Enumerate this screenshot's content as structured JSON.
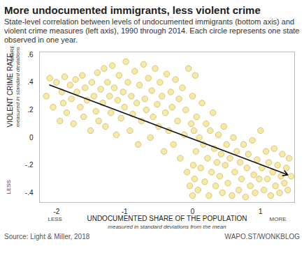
{
  "chart_data": {
    "type": "scatter",
    "title": "More undocumented immigrants, less violent crime",
    "subtitle": "State-level correlation between levels of undocumented immigrants (bottom axis) and violent crime measures (left axis), 1990 through 2014. Each circle represents one state observed in one year.",
    "x_label": "UNDOCUMENTED SHARE OF THE POPULATION",
    "x_label_note": "measured in standard deviations from the mean",
    "x_less": "LESS",
    "x_more": "MORE",
    "y_label": "VIOLENT CRIME RATE",
    "y_label_note": "measured in standard deviations from the mean",
    "y_less": "LESS",
    "y_more": "MORE",
    "source": "Source: Light & Miller, 2018",
    "credit": "WAPO.ST/WONKBLOG",
    "color": "#f7e9a6",
    "marker": "circle",
    "grid": false,
    "xlim": [
      -2.25,
      1.5
    ],
    "ylim": [
      -0.47,
      0.62
    ],
    "xticks": [
      -2,
      -1,
      0,
      1
    ],
    "yticks": [
      {
        "value": 0.6,
        "label": ".6"
      },
      {
        "value": 0.4,
        "label": ".4"
      },
      {
        "value": 0.2,
        "label": ".2"
      },
      0,
      {
        "value": -0.2,
        "label": "-.2"
      },
      {
        "value": -0.4,
        "label": "-.4"
      }
    ],
    "trend_line": {
      "x": [
        -2.1,
        1.4
      ],
      "values": [
        0.38,
        -0.27
      ]
    },
    "x": [
      -2.15,
      -2.1,
      -2.05,
      -2.0,
      -1.95,
      -1.92,
      -1.9,
      -1.88,
      -1.85,
      -1.8,
      -1.78,
      -1.75,
      -1.72,
      -1.7,
      -1.65,
      -1.62,
      -1.6,
      -1.58,
      -1.55,
      -1.5,
      -1.48,
      -1.45,
      -1.42,
      -1.4,
      -1.38,
      -1.35,
      -1.32,
      -1.3,
      -1.28,
      -1.25,
      -1.22,
      -1.2,
      -1.18,
      -1.15,
      -1.12,
      -1.1,
      -1.08,
      -1.05,
      -1.02,
      -1.0,
      -0.98,
      -0.95,
      -0.92,
      -0.9,
      -0.88,
      -0.85,
      -0.82,
      -0.8,
      -0.78,
      -0.75,
      -0.72,
      -0.7,
      -0.68,
      -0.65,
      -0.62,
      -0.6,
      -0.58,
      -0.55,
      -0.52,
      -0.5,
      -0.48,
      -0.45,
      -0.42,
      -0.4,
      -0.38,
      -0.35,
      -0.32,
      -0.3,
      -0.28,
      -0.25,
      -0.22,
      -0.2,
      -0.18,
      -0.15,
      -0.12,
      -0.1,
      -0.08,
      -0.06,
      -0.04,
      -0.02,
      0.0,
      0.0,
      0.01,
      0.02,
      0.03,
      0.04,
      0.05,
      0.06,
      0.08,
      0.1,
      0.12,
      0.14,
      0.16,
      0.18,
      0.2,
      0.22,
      0.24,
      0.26,
      0.28,
      0.3,
      0.32,
      0.34,
      0.36,
      0.38,
      0.4,
      0.42,
      0.44,
      0.46,
      0.48,
      0.5,
      0.52,
      0.55,
      0.58,
      0.6,
      0.62,
      0.65,
      0.68,
      0.7,
      0.72,
      0.75,
      0.78,
      0.8,
      0.82,
      0.85,
      0.88,
      0.9,
      0.92,
      0.95,
      0.98,
      1.0,
      1.02,
      1.05,
      1.08,
      1.1,
      1.12,
      1.15,
      1.18,
      1.2,
      1.22,
      1.25,
      1.28,
      1.3,
      1.32,
      1.35,
      1.38,
      1.4,
      1.42,
      1.45
    ],
    "values": [
      0.3,
      0.43,
      0.22,
      0.4,
      0.12,
      0.33,
      0.25,
      0.44,
      0.18,
      0.38,
      0.28,
      0.1,
      0.42,
      0.33,
      0.22,
      0.45,
      0.15,
      0.36,
      0.27,
      0.05,
      0.4,
      0.3,
      0.19,
      0.47,
      0.12,
      0.35,
      0.25,
      0.5,
      0.08,
      0.4,
      0.3,
      0.18,
      0.52,
      0.36,
      0.02,
      0.27,
      0.45,
      0.14,
      0.33,
      0.22,
      0.55,
      0.4,
      0.05,
      0.3,
      0.17,
      0.48,
      0.25,
      -0.05,
      0.38,
      0.12,
      0.53,
      0.28,
      0.2,
      0.43,
      0.0,
      0.34,
      0.15,
      0.5,
      0.24,
      0.08,
      0.4,
      0.3,
      -0.1,
      0.18,
      0.46,
      0.05,
      0.33,
      0.22,
      -0.05,
      0.42,
      0.12,
      0.28,
      -0.15,
      0.36,
      0.02,
      0.2,
      -0.25,
      0.5,
      -0.35,
      0.1,
      -0.42,
      0.3,
      -0.2,
      0.05,
      -0.3,
      0.45,
      -0.1,
      0.15,
      -0.38,
      0.0,
      -0.22,
      0.25,
      -0.05,
      -0.32,
      0.1,
      -0.15,
      -0.42,
      0.05,
      -0.25,
      0.18,
      -0.08,
      -0.35,
      -0.18,
      0.02,
      -0.28,
      -0.12,
      -0.4,
      0.08,
      -0.2,
      -0.05,
      -0.33,
      -0.15,
      -0.42,
      0.0,
      -0.25,
      -0.1,
      -0.38,
      -0.18,
      -0.3,
      -0.05,
      -0.43,
      -0.22,
      -0.12,
      -0.35,
      -0.02,
      -0.27,
      -0.4,
      -0.16,
      -0.3,
      0.05,
      -0.22,
      -0.38,
      -0.1,
      -0.3,
      -0.18,
      -0.42,
      -0.25,
      -0.08,
      -0.35,
      -0.2,
      -0.4,
      -0.28,
      -0.12,
      -0.33,
      -0.22,
      -0.38,
      -0.15,
      -0.28
    ]
  }
}
